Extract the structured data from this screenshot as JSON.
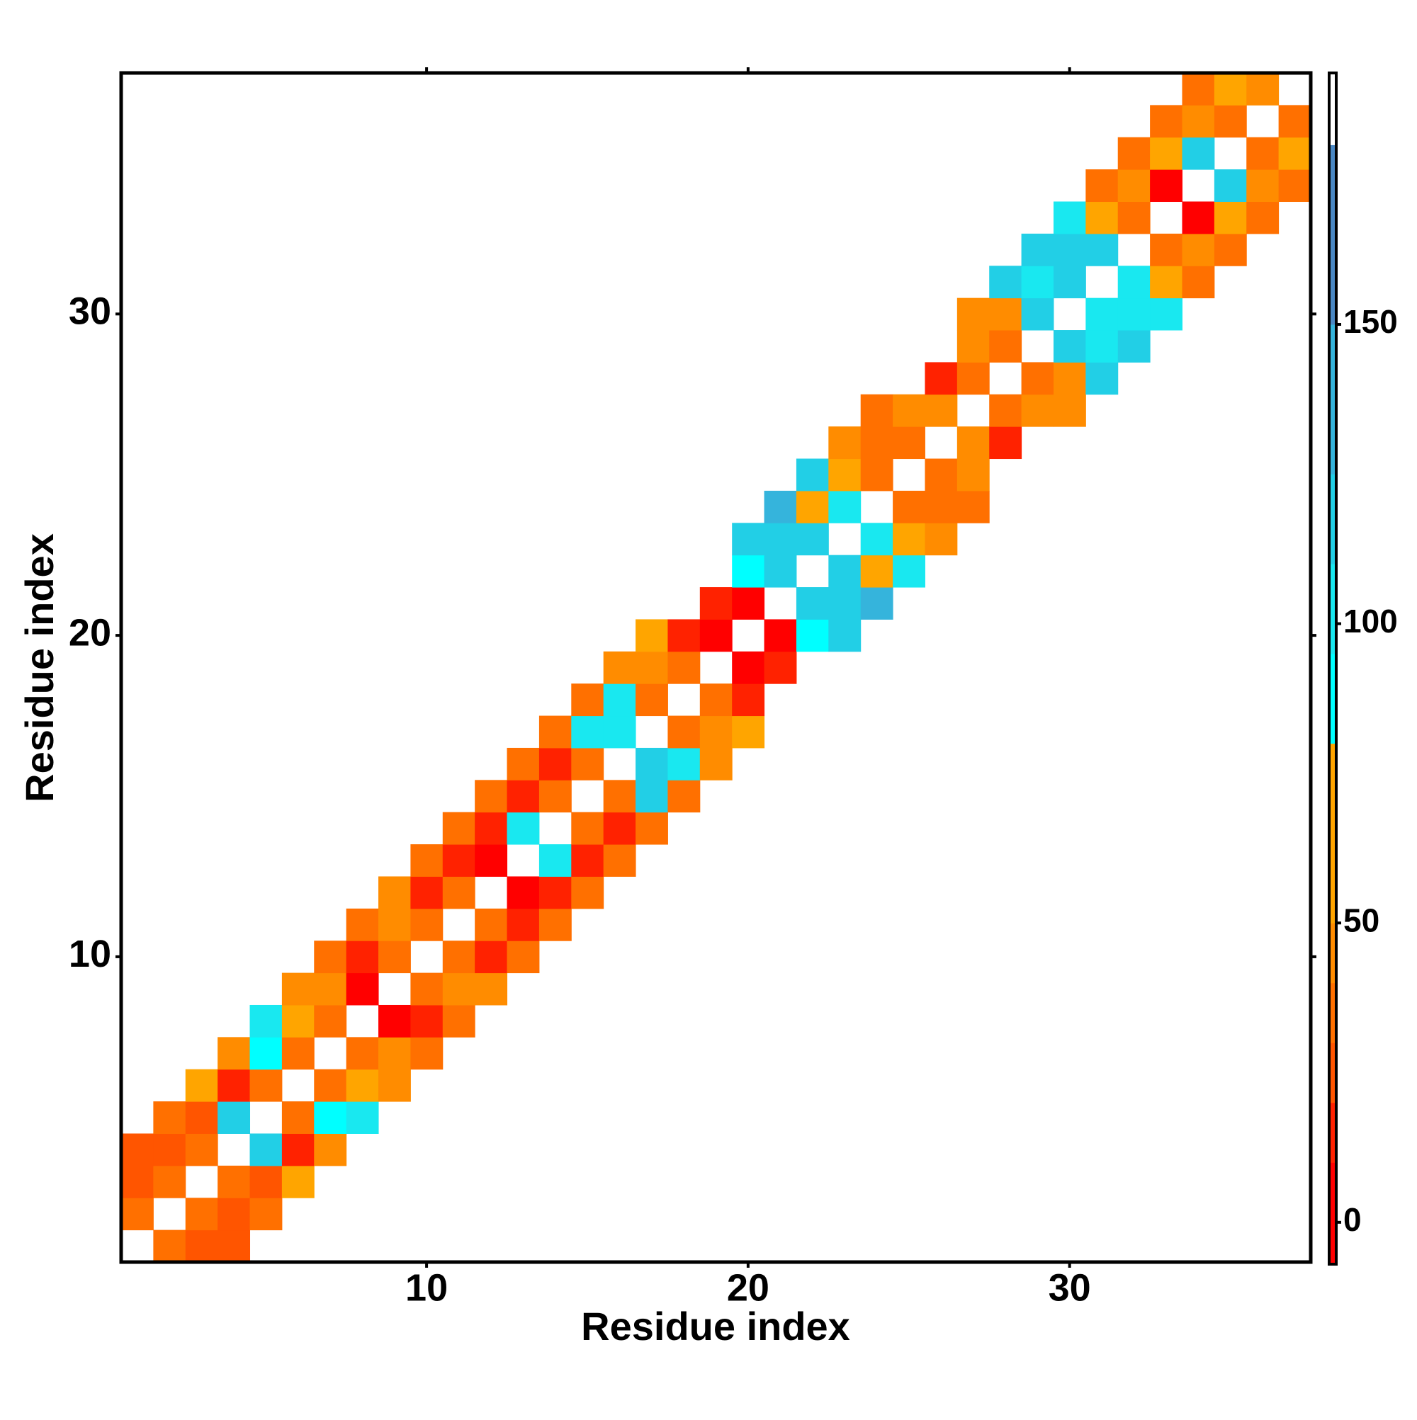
{
  "chart_data": {
    "type": "heatmap",
    "x_label": "Residue index",
    "y_label": "Residue index",
    "xlim": [
      0.5,
      37.5
    ],
    "ylim": [
      0.5,
      37.5
    ],
    "xticks": [
      10,
      20,
      30
    ],
    "yticks": [
      10,
      20,
      30
    ],
    "x": [
      2,
      3,
      4,
      1,
      3,
      4,
      5,
      1,
      2,
      4,
      5,
      6,
      1,
      2,
      3,
      5,
      6,
      7,
      2,
      3,
      4,
      6,
      7,
      8,
      3,
      4,
      5,
      7,
      8,
      9,
      4,
      5,
      6,
      8,
      9,
      10,
      5,
      6,
      7,
      9,
      10,
      11,
      6,
      7,
      8,
      10,
      11,
      12,
      7,
      8,
      9,
      11,
      12,
      13,
      8,
      9,
      10,
      12,
      13,
      14,
      9,
      10,
      11,
      13,
      14,
      15,
      10,
      11,
      12,
      14,
      15,
      16,
      11,
      12,
      13,
      15,
      16,
      17,
      12,
      13,
      14,
      16,
      17,
      18,
      13,
      14,
      15,
      17,
      18,
      19,
      14,
      15,
      16,
      18,
      19,
      20,
      15,
      16,
      17,
      19,
      20,
      16,
      17,
      18,
      20,
      21,
      17,
      18,
      19,
      21,
      22,
      23,
      19,
      20,
      22,
      23,
      24,
      20,
      21,
      23,
      24,
      25,
      20,
      21,
      22,
      24,
      25,
      26,
      21,
      22,
      23,
      25,
      26,
      27,
      22,
      23,
      24,
      26,
      27,
      23,
      24,
      25,
      27,
      28,
      24,
      25,
      26,
      28,
      29,
      30,
      26,
      27,
      29,
      30,
      31,
      27,
      28,
      30,
      31,
      32,
      27,
      28,
      29,
      31,
      32,
      33,
      28,
      29,
      30,
      32,
      33,
      34,
      29,
      30,
      31,
      33,
      34,
      35,
      30,
      31,
      32,
      34,
      35,
      36,
      31,
      32,
      33,
      35,
      36,
      37,
      32,
      33,
      34,
      36,
      37,
      33,
      34,
      35,
      37,
      34,
      35,
      36
    ],
    "y": [
      1,
      1,
      1,
      2,
      2,
      2,
      2,
      3,
      3,
      3,
      3,
      3,
      4,
      4,
      4,
      4,
      4,
      4,
      5,
      5,
      5,
      5,
      5,
      5,
      6,
      6,
      6,
      6,
      6,
      6,
      7,
      7,
      7,
      7,
      7,
      7,
      8,
      8,
      8,
      8,
      8,
      8,
      9,
      9,
      9,
      9,
      9,
      9,
      10,
      10,
      10,
      10,
      10,
      10,
      11,
      11,
      11,
      11,
      11,
      11,
      12,
      12,
      12,
      12,
      12,
      12,
      13,
      13,
      13,
      13,
      13,
      13,
      14,
      14,
      14,
      14,
      14,
      14,
      15,
      15,
      15,
      15,
      15,
      15,
      16,
      16,
      16,
      16,
      16,
      16,
      17,
      17,
      17,
      17,
      17,
      17,
      18,
      18,
      18,
      18,
      18,
      19,
      19,
      19,
      19,
      19,
      20,
      20,
      20,
      20,
      20,
      20,
      21,
      21,
      21,
      21,
      21,
      22,
      22,
      22,
      22,
      22,
      23,
      23,
      23,
      23,
      23,
      23,
      24,
      24,
      24,
      24,
      24,
      24,
      25,
      25,
      25,
      25,
      25,
      26,
      26,
      26,
      26,
      26,
      27,
      27,
      27,
      27,
      27,
      27,
      28,
      28,
      28,
      28,
      28,
      29,
      29,
      29,
      29,
      29,
      30,
      30,
      30,
      30,
      30,
      30,
      31,
      31,
      31,
      31,
      31,
      31,
      32,
      32,
      32,
      32,
      32,
      32,
      33,
      33,
      33,
      33,
      33,
      33,
      34,
      34,
      34,
      34,
      34,
      34,
      35,
      35,
      35,
      35,
      35,
      36,
      36,
      36,
      36,
      37,
      37,
      37
    ],
    "values": [
      35,
      25,
      25,
      30,
      35,
      25,
      35,
      25,
      35,
      35,
      25,
      60,
      25,
      25,
      35,
      115,
      15,
      45,
      35,
      25,
      115,
      35,
      90,
      105,
      60,
      18,
      35,
      35,
      60,
      45,
      45,
      90,
      35,
      35,
      45,
      35,
      105,
      60,
      35,
      5,
      15,
      35,
      45,
      45,
      5,
      35,
      45,
      45,
      35,
      15,
      35,
      35,
      15,
      35,
      35,
      45,
      35,
      35,
      10,
      35,
      45,
      15,
      35,
      5,
      12,
      35,
      35,
      15,
      5,
      105,
      15,
      35,
      35,
      15,
      105,
      35,
      15,
      35,
      35,
      15,
      35,
      35,
      115,
      35,
      35,
      15,
      35,
      115,
      105,
      45,
      35,
      105,
      105,
      35,
      45,
      60,
      35,
      100,
      35,
      35,
      15,
      45,
      45,
      35,
      5,
      15,
      60,
      15,
      5,
      5,
      90,
      115,
      15,
      5,
      115,
      115,
      135,
      90,
      115,
      115,
      60,
      105,
      115,
      115,
      115,
      105,
      60,
      45,
      135,
      60,
      105,
      35,
      35,
      35,
      115,
      60,
      35,
      35,
      45,
      45,
      35,
      35,
      45,
      15,
      35,
      45,
      45,
      35,
      45,
      45,
      10,
      35,
      35,
      45,
      115,
      45,
      35,
      115,
      100,
      120,
      45,
      45,
      115,
      105,
      105,
      100,
      115,
      100,
      115,
      105,
      60,
      35,
      120,
      110,
      110,
      35,
      45,
      35,
      100,
      60,
      35,
      5,
      60,
      30,
      35,
      45,
      5,
      110,
      45,
      30,
      35,
      60,
      110,
      35,
      60,
      30,
      45,
      35,
      35,
      30,
      60,
      45
    ],
    "colorbar": {
      "lim": [
        -7,
        192
      ],
      "ticks": [
        0,
        50,
        100,
        150
      ],
      "edges": [
        -7,
        10,
        20,
        30,
        40,
        50,
        80,
        95,
        110,
        125,
        150,
        180,
        192
      ],
      "colors": [
        "#ff0000",
        "#ff2200",
        "#ff5500",
        "#ff7000",
        "#ff8c00",
        "#ffa500",
        "#00ffff",
        "#19e8f0",
        "#22cfe6",
        "#35b4dc",
        "#4a88c4",
        "#ffffff"
      ]
    }
  }
}
